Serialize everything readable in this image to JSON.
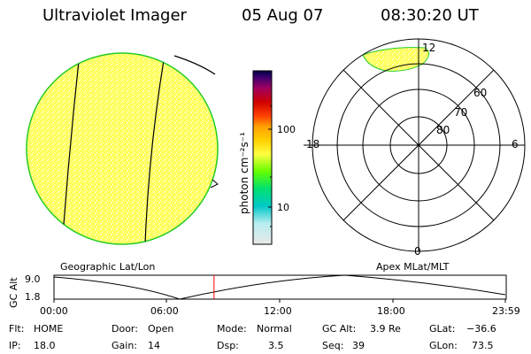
{
  "header": {
    "title": "Ultraviolet Imager",
    "date": "05 Aug 07",
    "time": "08:30:20 UT"
  },
  "colorbar": {
    "unit": "photon cm⁻²s⁻¹",
    "ticks": [
      "100",
      "10"
    ],
    "colors": [
      "#e8e8e8",
      "#00c8c8",
      "#00e070",
      "#66ff00",
      "#ffff40",
      "#ffa000",
      "#ff4000",
      "#d00000",
      "#a00060",
      "#400070",
      "#000040"
    ]
  },
  "geo_panel": {
    "label": "Geographic Lat/Lon",
    "fill_color": "#ffff60",
    "edge_color": "#22cc22"
  },
  "polar_panel": {
    "label": "Apex  MLat/MLT",
    "mlt_labels": {
      "top": "12",
      "left": "18",
      "right": "6",
      "bottom": "0"
    },
    "lat_rings": [
      "60",
      "70",
      "80"
    ]
  },
  "alt_plot": {
    "axis_label": "GC Alt",
    "y_ticks": [
      "9.0",
      "1.8"
    ],
    "x_ticks": [
      "00:00",
      "06:00",
      "12:00",
      "18:00",
      "23:59"
    ],
    "cursor_time_hours": 8.51,
    "cursor_color": "#ff0000"
  },
  "status": {
    "flt": {
      "label": "Flt:",
      "value": "HOME"
    },
    "ip": {
      "label": "IP:",
      "value": "18.0"
    },
    "door": {
      "label": "Door:",
      "value": "Open"
    },
    "gain": {
      "label": "Gain:",
      "value": "14"
    },
    "mode": {
      "label": "Mode:",
      "value": "Normal"
    },
    "dsp": {
      "label": "Dsp:",
      "value": "3.5"
    },
    "gcalt": {
      "label": "GC Alt:",
      "value": "3.9 Re"
    },
    "seq": {
      "label": "Seq:",
      "value": "39"
    },
    "glat": {
      "label": "GLat:",
      "value": "−36.6"
    },
    "glon": {
      "label": "GLon:",
      "value": "73.5"
    }
  }
}
